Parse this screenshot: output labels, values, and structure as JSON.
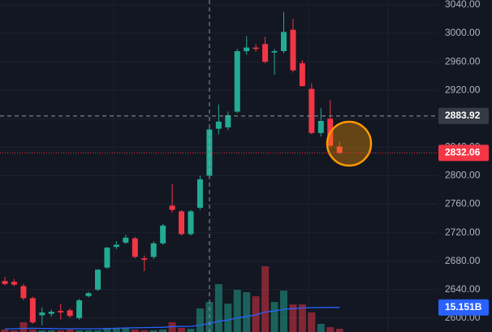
{
  "chart_data": {
    "type": "candlestick",
    "up_color": "#22ab94",
    "down_color": "#f23645",
    "grid": true,
    "ylim": [
      2580.5,
      3046.8
    ],
    "yticks": [
      {
        "value": 3040,
        "label": "3040.00"
      },
      {
        "value": 3000,
        "label": "3000.00"
      },
      {
        "value": 2960,
        "label": "2960.00"
      },
      {
        "value": 2920,
        "label": "2920.00"
      },
      {
        "value": 2880,
        "label": "2880.00"
      },
      {
        "value": 2840,
        "label": "2840.00"
      },
      {
        "value": 2800,
        "label": "2800.00"
      },
      {
        "value": 2760,
        "label": "2760.00"
      },
      {
        "value": 2720,
        "label": "2720.00"
      },
      {
        "value": 2680,
        "label": "2680.00"
      },
      {
        "value": 2640,
        "label": "2640.00"
      },
      {
        "value": 2600,
        "label": "2600.00"
      }
    ],
    "open": [
      2652,
      2651,
      2645,
      2628,
      2604,
      2606,
      2610,
      2611,
      2600,
      2631,
      2640,
      2671,
      2700,
      2706,
      2712,
      2684,
      2686,
      2705,
      2758,
      2750,
      2718,
      2755,
      2800,
      2866,
      2868,
      2890,
      2975,
      2980,
      2985,
      2973,
      2975,
      3005,
      2958,
      2922,
      2860,
      2880,
      2841
    ],
    "high": [
      2658,
      2655,
      2648,
      2630,
      2615,
      2612,
      2620,
      2614,
      2627,
      2637,
      2669,
      2700,
      2708,
      2717,
      2714,
      2688,
      2708,
      2732,
      2788,
      2752,
      2752,
      2800,
      2868,
      2900,
      2890,
      2978,
      2996,
      2985,
      2995,
      2978,
      3030,
      3020,
      2962,
      2930,
      2895,
      2906,
      2848
    ],
    "low": [
      2646,
      2645,
      2625,
      2592,
      2590,
      2602,
      2598,
      2600,
      2598,
      2629,
      2638,
      2669,
      2697,
      2704,
      2684,
      2666,
      2683,
      2703,
      2748,
      2716,
      2716,
      2752,
      2798,
      2858,
      2864,
      2888,
      2970,
      2974,
      2958,
      2942,
      2972,
      2945,
      2925,
      2858,
      2855,
      2840,
      2830
    ],
    "close": [
      2648,
      2647,
      2628,
      2594,
      2608,
      2609,
      2608,
      2603,
      2625,
      2635,
      2668,
      2699,
      2703,
      2713,
      2686,
      2682,
      2705,
      2730,
      2752,
      2718,
      2750,
      2795,
      2865,
      2876,
      2885,
      2975,
      2980,
      2978,
      2960,
      2975,
      3002,
      2948,
      2926,
      2860,
      2877,
      2842,
      2832.06
    ],
    "volume_lim": [
      0,
      60
    ],
    "volume": [
      1.5,
      1,
      6,
      1.5,
      1,
      1,
      1,
      1.5,
      1,
      1,
      1,
      2.5,
      2.5,
      2.5,
      1.5,
      1,
      1,
      1.5,
      6,
      2.5,
      2,
      14.5,
      18.5,
      29.5,
      17.5,
      26,
      24.5,
      22,
      40.5,
      18.5,
      25.5,
      17,
      17,
      12,
      5,
      3,
      2
    ],
    "volume_ma": [
      2,
      2,
      2.2,
      2.3,
      2.2,
      2.1,
      2,
      2,
      2,
      2,
      2,
      2.1,
      2.3,
      2.5,
      2.6,
      2.7,
      2.8,
      2.9,
      3.3,
      3.4,
      3.5,
      4.2,
      5.2,
      6.6,
      7.4,
      8.6,
      9.6,
      10.5,
      12.3,
      12.9,
      14,
      14.4,
      14.8,
      15,
      15.1,
      15.1,
      15.151
    ],
    "volume_ma_color": "#2962ff",
    "volume_ma_last": {
      "value": 15.151,
      "label": "15.151B"
    },
    "crosshair_price": 2883.92,
    "last_price": 2832.06
  }
}
